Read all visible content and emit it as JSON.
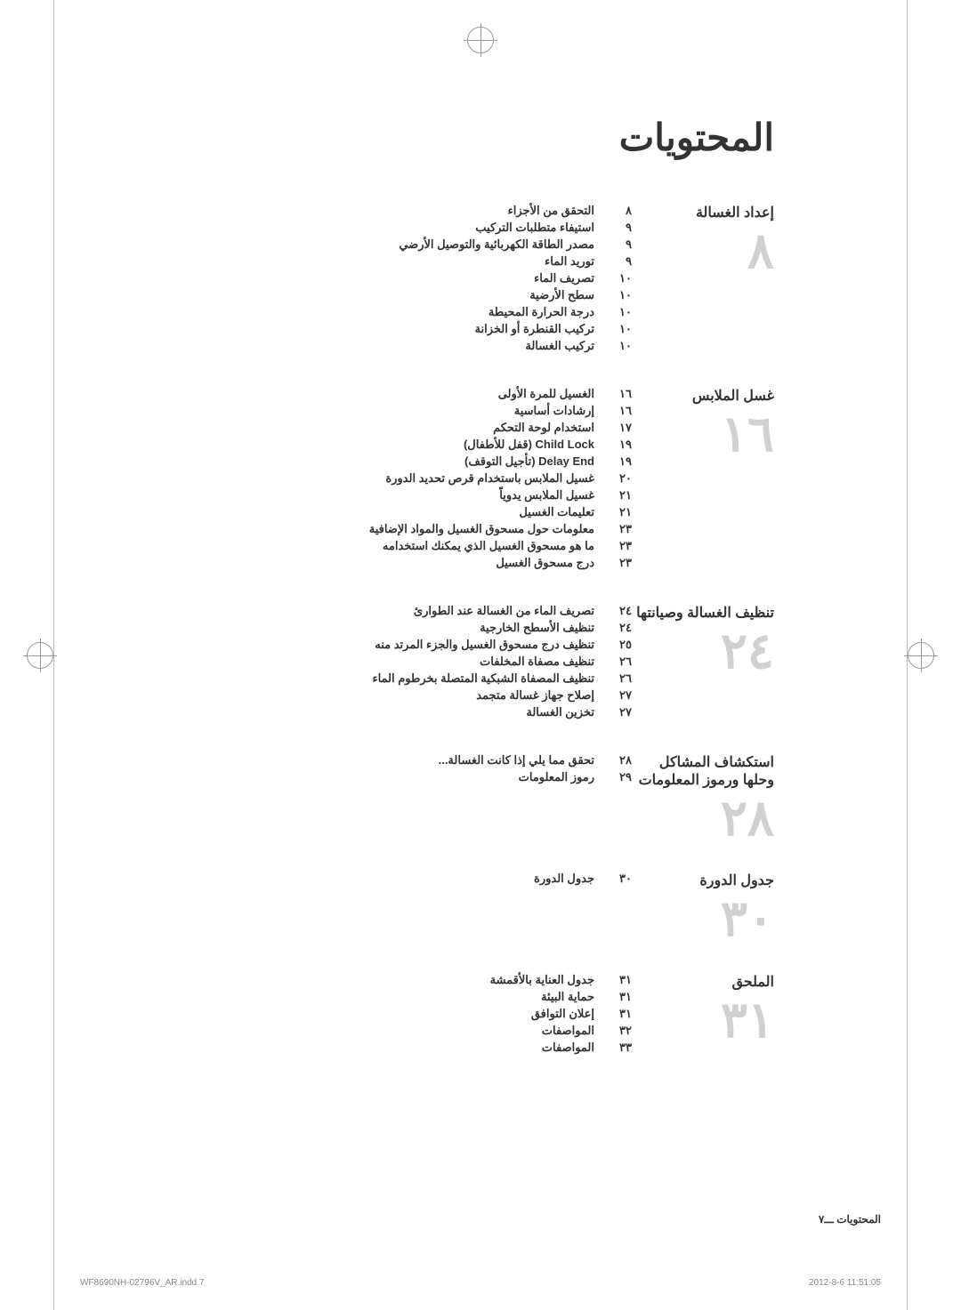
{
  "main_title": "المحتويات",
  "sections": [
    {
      "title": "إعداد الغسالة",
      "number": "٨",
      "items": [
        {
          "page": "٨",
          "text": "التحقق من الأجزاء"
        },
        {
          "page": "٩",
          "text": "استيفاء متطلبات التركيب"
        },
        {
          "page": "٩",
          "text": "مصدر الطاقة الكهربائية والتوصيل الأرضي"
        },
        {
          "page": "٩",
          "text": "توريد الماء"
        },
        {
          "page": "١٠",
          "text": "تصريف الماء"
        },
        {
          "page": "١٠",
          "text": "سطح الأرضية"
        },
        {
          "page": "١٠",
          "text": "درجة الحرارة المحيطة"
        },
        {
          "page": "١٠",
          "text": "تركيب القنطرة أو الخزانة"
        },
        {
          "page": "١٠",
          "text": "تركيب الغسالة"
        }
      ]
    },
    {
      "title": "غسل الملابس",
      "number": "١٦",
      "items": [
        {
          "page": "١٦",
          "text": "الغسيل للمرة الأولى"
        },
        {
          "page": "١٦",
          "text": "إرشادات أساسية"
        },
        {
          "page": "١٧",
          "text": "استخدام لوحة التحكم"
        },
        {
          "page": "١٩",
          "text": "Child Lock (قفل للأطفال)"
        },
        {
          "page": "١٩",
          "text": "Delay End (تأجيل التوقف)"
        },
        {
          "page": "٢٠",
          "text": "غسيل الملابس باستخدام قرص تحديد الدورة"
        },
        {
          "page": "٢١",
          "text": "غسيل الملابس يدوياً"
        },
        {
          "page": "٢١",
          "text": "تعليمات الغسيل"
        },
        {
          "page": "٢٣",
          "text": "معلومات حول مسحوق الغسيل والمواد الإضافية"
        },
        {
          "page": "٢٣",
          "text": "ما هو مسحوق الغسيل الذي يمكنك استخدامه"
        },
        {
          "page": "٢٣",
          "text": "درج مسحوق الغسيل"
        }
      ]
    },
    {
      "title": "تنظيف الغسالة وصيانتها",
      "number": "٢٤",
      "items": [
        {
          "page": "٢٤",
          "text": "تصريف الماء من الغسالة عند الطوارئ"
        },
        {
          "page": "٢٤",
          "text": "تنظيف الأسطح الخارجية"
        },
        {
          "page": "٢٥",
          "text": "تنظيف درج مسحوق الغسيل والجزء المرتد منه"
        },
        {
          "page": "٢٦",
          "text": "تنظيف مصفاة المخلفات"
        },
        {
          "page": "٢٦",
          "text": "تنظيف المصفاة الشبكية المتصلة بخرطوم الماء"
        },
        {
          "page": "٢٧",
          "text": "إصلاح جهاز غسالة متجمد"
        },
        {
          "page": "٢٧",
          "text": "تخزين الغسالة"
        }
      ]
    },
    {
      "title": "استكشاف المشاكل وحلها ورموز المعلومات",
      "number": "٢٨",
      "items": [
        {
          "page": "٢٨",
          "text": "تحقق مما يلي إذا كانت الغسالة..."
        },
        {
          "page": "٢٩",
          "text": "رموز المعلومات"
        }
      ]
    },
    {
      "title": "جدول الدورة",
      "number": "٣٠",
      "items": [
        {
          "page": "٣٠",
          "text": "جدول الدورة"
        }
      ]
    },
    {
      "title": "الملحق",
      "number": "٣١",
      "items": [
        {
          "page": "٣١",
          "text": "جدول العناية بالأقمشة"
        },
        {
          "page": "٣١",
          "text": "حماية البيئة"
        },
        {
          "page": "٣١",
          "text": "إعلان التوافق"
        },
        {
          "page": "٣٢",
          "text": "المواصفات"
        },
        {
          "page": "٣٣",
          "text": "المواصفات"
        }
      ]
    }
  ],
  "footer_text": "المحتويات ـــ٧",
  "print_left": "WF8690NH-02796V_AR.indd   7",
  "print_right": "2012-8-6   11:51:05"
}
